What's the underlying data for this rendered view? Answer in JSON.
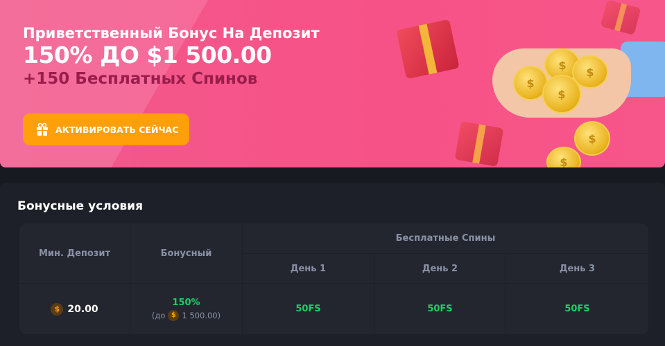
{
  "banner": {
    "title": "Приветственный Бонус На Депозит",
    "amount": "150% ДО $1 500.00",
    "spins": "+150 Бесплатных Спинов",
    "button": "АКТИВИРОВАТЬ СЕЙЧАС"
  },
  "conditions": {
    "title": "Бонусные условия",
    "headers": {
      "min_deposit": "Мин. Депозит",
      "bonus": "Бонусный",
      "free_spins": "Бесплатные Спины",
      "days": [
        "День 1",
        "День 2",
        "День 3"
      ]
    },
    "row": {
      "currency": "$",
      "min_deposit": "20.00",
      "bonus_pct": "150%",
      "bonus_prefix": "(до",
      "bonus_max": "1 500.00)",
      "days": [
        "50FS",
        "50FS",
        "50FS"
      ]
    }
  },
  "colors": {
    "banner": "#f75287",
    "button": "#ff9f0a",
    "green": "#22cc66"
  }
}
